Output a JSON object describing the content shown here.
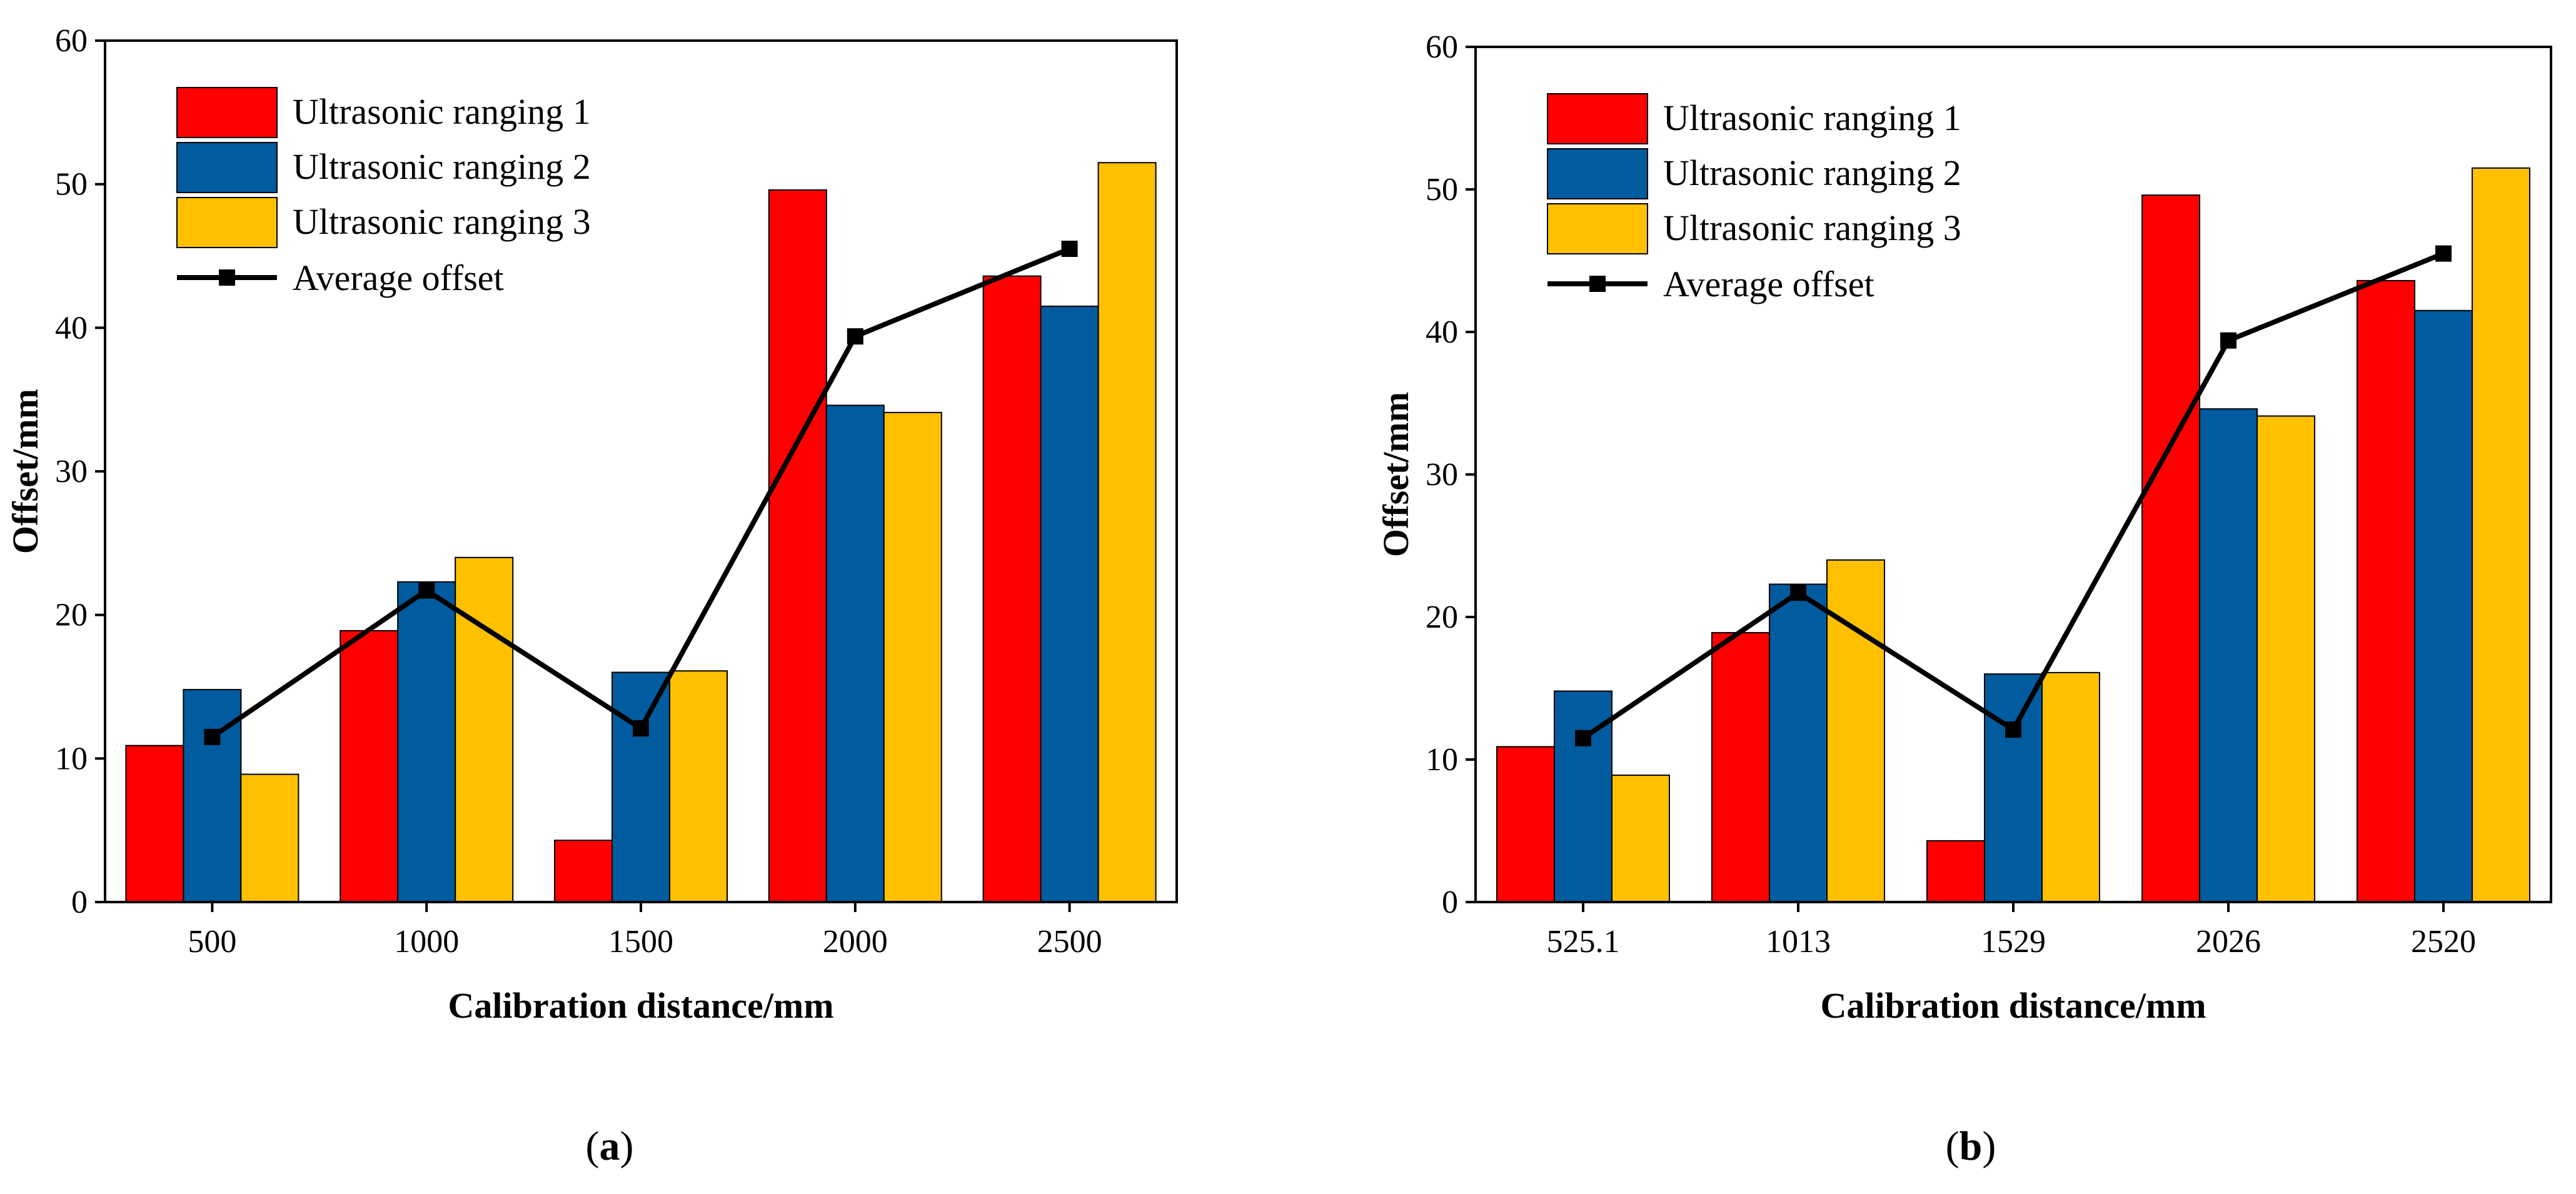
{
  "chart_data": [
    {
      "type": "bar",
      "panel_label": "a",
      "xlabel": "Calibration distance/mm",
      "ylabel": "Offset/mm",
      "ylim": [
        0,
        60
      ],
      "yticks": [
        "0",
        "10",
        "20",
        "30",
        "40",
        "50",
        "60"
      ],
      "categories": [
        "500",
        "1000",
        "1500",
        "2000",
        "2500"
      ],
      "series": [
        {
          "name": "Ultrasonic ranging 1",
          "color": "#ff0000",
          "values": [
            10.9,
            18.9,
            4.3,
            49.6,
            43.6
          ]
        },
        {
          "name": "Ultrasonic ranging 2",
          "color": "#005b9f",
          "values": [
            14.8,
            22.3,
            16.0,
            34.6,
            41.5
          ]
        },
        {
          "name": "Ultrasonic ranging 3",
          "color": "#ffc000",
          "values": [
            8.9,
            24.0,
            16.1,
            34.1,
            51.5
          ]
        }
      ],
      "line": {
        "name": "Average offset",
        "color": "#000000",
        "values": [
          11.5,
          21.7,
          12.1,
          39.4,
          45.5
        ]
      },
      "legend_position": "top-left"
    },
    {
      "type": "bar",
      "panel_label": "b",
      "xlabel": "Calibration distance/mm",
      "ylabel": "Offset/mm",
      "ylim": [
        0,
        60
      ],
      "yticks": [
        "0",
        "10",
        "20",
        "30",
        "40",
        "50",
        "60"
      ],
      "categories": [
        "525.1",
        "1013",
        "1529",
        "2026",
        "2520"
      ],
      "series": [
        {
          "name": "Ultrasonic ranging 1",
          "color": "#ff0000",
          "values": [
            10.9,
            18.9,
            4.3,
            49.6,
            43.6
          ]
        },
        {
          "name": "Ultrasonic ranging 2",
          "color": "#005b9f",
          "values": [
            14.8,
            22.3,
            16.0,
            34.6,
            41.5
          ]
        },
        {
          "name": "Ultrasonic ranging 3",
          "color": "#ffc000",
          "values": [
            8.9,
            24.0,
            16.1,
            34.1,
            51.5
          ]
        }
      ],
      "line": {
        "name": "Average offset",
        "color": "#000000",
        "values": [
          11.5,
          21.7,
          12.1,
          39.4,
          45.5
        ]
      },
      "legend_position": "top-left"
    }
  ],
  "captions": [
    {
      "open": "(",
      "label": "a",
      "close": ")"
    },
    {
      "open": "(",
      "label": "b",
      "close": ")"
    }
  ]
}
